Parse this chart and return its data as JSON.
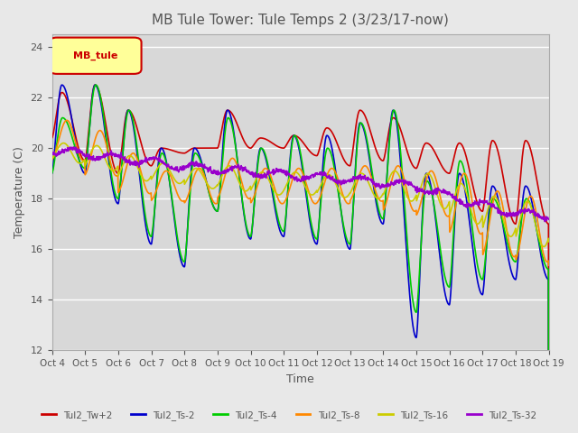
{
  "title": "MB Tule Tower: Tule Temps 2 (3/23/17-now)",
  "xlabel": "Time",
  "ylabel": "Temperature (C)",
  "ylim": [
    12,
    24.5
  ],
  "yticks": [
    12,
    14,
    16,
    18,
    20,
    22,
    24
  ],
  "xlim": [
    0,
    15
  ],
  "xtick_labels": [
    "Oct 4",
    "Oct 5",
    "Oct 6",
    "Oct 7",
    "Oct 8",
    "Oct 9",
    "Oct 10",
    "Oct 11",
    "Oct 12",
    "Oct 13",
    "Oct 14",
    "Oct 15",
    "Oct 16",
    "Oct 17",
    "Oct 18",
    "Oct 19"
  ],
  "legend_label": "MB_tule",
  "series_labels": [
    "Tul2_Tw+2",
    "Tul2_Ts-2",
    "Tul2_Ts-4",
    "Tul2_Ts-8",
    "Tul2_Ts-16",
    "Tul2_Ts-32"
  ],
  "series_colors": [
    "#cc0000",
    "#0000cc",
    "#00cc00",
    "#ff8800",
    "#cccc00",
    "#9900cc"
  ],
  "background_color": "#e8e8e8",
  "plot_bg_color": "#d8d8d8",
  "grid_color": "#ffffff",
  "title_color": "#555555",
  "label_color": "#555555",
  "figsize": [
    6.4,
    4.8
  ],
  "dpi": 100
}
